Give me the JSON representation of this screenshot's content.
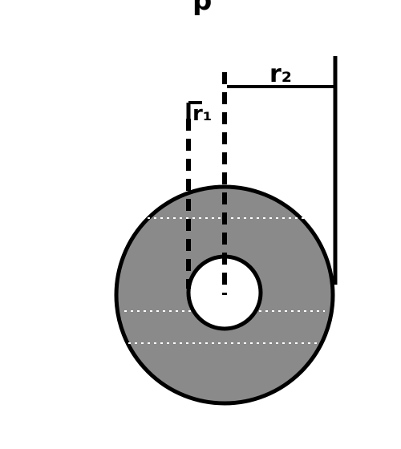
{
  "diagram": {
    "labels": {
      "top_fragment": "p",
      "inner_radius": "r₁",
      "outer_radius": "r₂"
    },
    "colors": {
      "ring_fill": "#8a8a8a",
      "hole_fill": "#ffffff",
      "outline": "#000000",
      "hatch_lines": "#ffffff"
    },
    "shapes": {
      "outer_disk": "annulus-outer-boundary",
      "inner_hole": "annulus-inner-boundary"
    }
  }
}
